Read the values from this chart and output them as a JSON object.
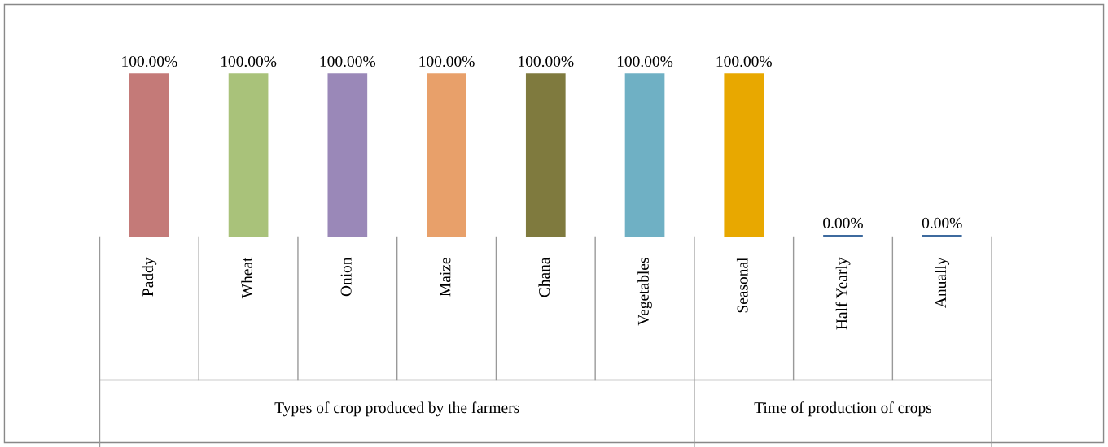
{
  "chart_data": {
    "type": "bar",
    "categories": [
      "Paddy",
      "Wheat",
      "Onion",
      "Maize",
      "Chana",
      "Vegetables",
      "Seasonal",
      "Half Yearly",
      "Anually"
    ],
    "values": [
      100,
      100,
      100,
      100,
      100,
      100,
      100,
      0,
      0
    ],
    "value_labels": [
      "100.00%",
      "100.00%",
      "100.00%",
      "100.00%",
      "100.00%",
      "100.00%",
      "100.00%",
      "0.00%",
      "0.00%"
    ],
    "colors": [
      "#c47a78",
      "#a9c27a",
      "#9a88b8",
      "#e8a06a",
      "#7f7a3e",
      "#6fb0c4",
      "#e8a800",
      "#3d6a9e",
      "#3d6a9e"
    ],
    "annotations": [
      "Types of crop produced by the farmers",
      "Time of production of crops"
    ],
    "grid": false,
    "legend": false
  }
}
